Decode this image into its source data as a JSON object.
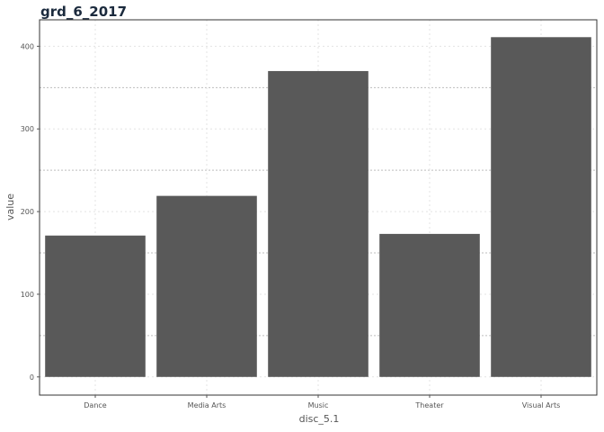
{
  "chart_data": {
    "type": "bar",
    "title": "grd_6_2017",
    "xlabel": "disc_5.1",
    "ylabel": "value",
    "categories": [
      "Dance",
      "Media Arts",
      "Music",
      "Theater",
      "Visual Arts"
    ],
    "values": [
      171,
      219,
      370,
      173,
      411
    ],
    "ylim": [
      -22,
      432
    ],
    "yticks": [
      0,
      100,
      200,
      300,
      400
    ],
    "grid": true,
    "legend": "none",
    "colors": {
      "bar": "#595959",
      "grid": "#d9d9d9",
      "frame": "#333333",
      "title": "#1b2a3d"
    }
  }
}
